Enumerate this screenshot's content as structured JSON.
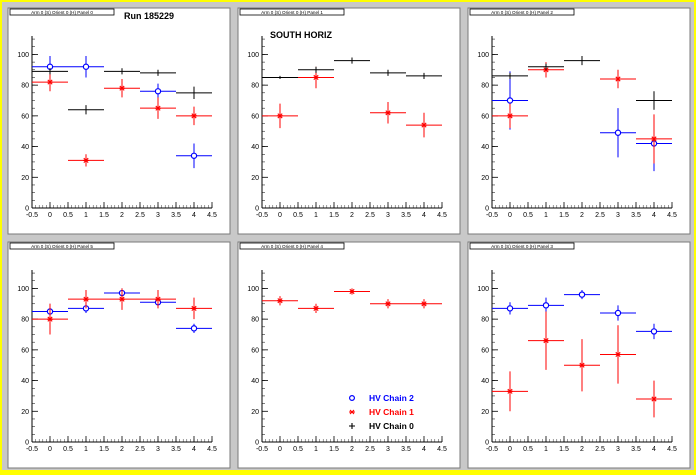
{
  "figure": {
    "run_label": "Run 185229",
    "region_label": "SOUTH HORIZ"
  },
  "legend": {
    "entries": [
      {
        "label": "HV Chain 2",
        "color": "#0000ff",
        "marker": "open-circle"
      },
      {
        "label": "HV Chain 1",
        "color": "#ff0000",
        "marker": "star"
      },
      {
        "label": "HV Chain 0",
        "color": "#000000",
        "marker": "cross"
      }
    ]
  },
  "colors": {
    "chain2": "#0000ff",
    "chain1": "#ff0000",
    "chain0": "#000000",
    "frame": "#c8c8c8",
    "border": "#ffff00"
  },
  "chart_data": [
    {
      "type": "scatter",
      "title": "Arm 0 (S) Orient 0 (H) Panel 0",
      "x_ticks": [
        "-0.5",
        "0",
        "0.5",
        "1",
        "1.5",
        "2",
        "2.5",
        "3",
        "3.5",
        "4",
        "4.5"
      ],
      "y_ticks": [
        "0",
        "20",
        "40",
        "60",
        "80",
        "100"
      ],
      "xlim": [
        -0.5,
        4.5
      ],
      "ylim": [
        0,
        112
      ],
      "series": [
        {
          "name": "HV Chain 2",
          "color": "#0000ff",
          "marker": "open-circle",
          "points": [
            {
              "x": 0,
              "y": 92,
              "ey": 7
            },
            {
              "x": 1,
              "y": 92,
              "ey": 7
            },
            {
              "x": 3,
              "y": 76,
              "ey": 5
            },
            {
              "x": 4,
              "y": 34,
              "ey": 8
            }
          ]
        },
        {
          "name": "HV Chain 1",
          "color": "#ff0000",
          "marker": "star",
          "points": [
            {
              "x": 0,
              "y": 82,
              "ey": 6
            },
            {
              "x": 1,
              "y": 31,
              "ey": 4
            },
            {
              "x": 2,
              "y": 78,
              "ey": 6
            },
            {
              "x": 3,
              "y": 65,
              "ey": 7
            },
            {
              "x": 4,
              "y": 60,
              "ey": 6
            }
          ]
        },
        {
          "name": "HV Chain 0",
          "color": "#000000",
          "marker": "cross",
          "points": [
            {
              "x": 0,
              "y": 89,
              "ey": 2
            },
            {
              "x": 1,
              "y": 64,
              "ey": 3
            },
            {
              "x": 2,
              "y": 89,
              "ey": 2
            },
            {
              "x": 3,
              "y": 88,
              "ey": 2
            },
            {
              "x": 4,
              "y": 75,
              "ey": 4
            }
          ]
        }
      ]
    },
    {
      "type": "scatter",
      "title": "Arm 0 (S) Orient 0 (H) Panel 1",
      "x_ticks": [
        "-0.5",
        "0",
        "0.5",
        "1",
        "1.5",
        "2",
        "2.5",
        "3",
        "3.5",
        "4",
        "4.5"
      ],
      "y_ticks": [
        "0",
        "20",
        "40",
        "60",
        "80",
        "100"
      ],
      "xlim": [
        -0.5,
        4.5
      ],
      "ylim": [
        0,
        112
      ],
      "series": [
        {
          "name": "HV Chain 2",
          "color": "#0000ff",
          "marker": "open-circle",
          "points": []
        },
        {
          "name": "HV Chain 1",
          "color": "#ff0000",
          "marker": "star",
          "points": [
            {
              "x": 0,
              "y": 60,
              "ey": 8
            },
            {
              "x": 1,
              "y": 85,
              "ey": 7
            },
            {
              "x": 3,
              "y": 62,
              "ey": 7
            },
            {
              "x": 4,
              "y": 54,
              "ey": 8
            }
          ]
        },
        {
          "name": "HV Chain 0",
          "color": "#000000",
          "marker": "cross",
          "points": [
            {
              "x": 0,
              "y": 85,
              "ey": 1
            },
            {
              "x": 1,
              "y": 90,
              "ey": 2
            },
            {
              "x": 2,
              "y": 96,
              "ey": 2
            },
            {
              "x": 3,
              "y": 88,
              "ey": 2
            },
            {
              "x": 4,
              "y": 86,
              "ey": 2
            }
          ]
        }
      ]
    },
    {
      "type": "scatter",
      "title": "Arm 0 (S) Orient 0 (H) Panel 2",
      "x_ticks": [
        "-0.5",
        "0",
        "0.5",
        "1",
        "1.5",
        "2",
        "2.5",
        "3",
        "3.5",
        "4",
        "4.5"
      ],
      "y_ticks": [
        "0",
        "20",
        "40",
        "60",
        "80",
        "100"
      ],
      "xlim": [
        -0.5,
        4.5
      ],
      "ylim": [
        0,
        112
      ],
      "series": [
        {
          "name": "HV Chain 2",
          "color": "#0000ff",
          "marker": "open-circle",
          "points": [
            {
              "x": 0,
              "y": 70,
              "ey": 19
            },
            {
              "x": 3,
              "y": 49,
              "ey": 16
            },
            {
              "x": 4,
              "y": 42,
              "ey": 18
            }
          ]
        },
        {
          "name": "HV Chain 1",
          "color": "#ff0000",
          "marker": "star",
          "points": [
            {
              "x": 0,
              "y": 60,
              "ey": 8
            },
            {
              "x": 1,
              "y": 90,
              "ey": 5
            },
            {
              "x": 3,
              "y": 84,
              "ey": 6
            },
            {
              "x": 4,
              "y": 45,
              "ey": 16
            }
          ]
        },
        {
          "name": "HV Chain 0",
          "color": "#000000",
          "marker": "cross",
          "points": [
            {
              "x": 0,
              "y": 86,
              "ey": 2
            },
            {
              "x": 1,
              "y": 92,
              "ey": 2
            },
            {
              "x": 2,
              "y": 96,
              "ey": 3
            },
            {
              "x": 4,
              "y": 70,
              "ey": 6
            }
          ]
        }
      ]
    },
    {
      "type": "scatter",
      "title": "Arm 0 (S) Orient 0 (H) Panel 5",
      "x_ticks": [
        "-0.5",
        "0",
        "0.5",
        "1",
        "1.5",
        "2",
        "2.5",
        "3",
        "3.5",
        "4",
        "4.5"
      ],
      "y_ticks": [
        "0",
        "20",
        "40",
        "60",
        "80",
        "100"
      ],
      "xlim": [
        -0.5,
        4.5
      ],
      "ylim": [
        0,
        112
      ],
      "series": [
        {
          "name": "HV Chain 2",
          "color": "#0000ff",
          "marker": "open-circle",
          "points": [
            {
              "x": 0,
              "y": 85,
              "ey": 5
            },
            {
              "x": 1,
              "y": 87,
              "ey": 3
            },
            {
              "x": 2,
              "y": 97,
              "ey": 3
            },
            {
              "x": 3,
              "y": 91,
              "ey": 3
            },
            {
              "x": 4,
              "y": 74,
              "ey": 3
            }
          ]
        },
        {
          "name": "HV Chain 1",
          "color": "#ff0000",
          "marker": "star",
          "points": [
            {
              "x": 0,
              "y": 80,
              "ey": 10
            },
            {
              "x": 1,
              "y": 93,
              "ey": 6
            },
            {
              "x": 2,
              "y": 93,
              "ey": 7
            },
            {
              "x": 3,
              "y": 93,
              "ey": 6
            },
            {
              "x": 4,
              "y": 87,
              "ey": 7
            }
          ]
        },
        {
          "name": "HV Chain 0",
          "color": "#000000",
          "marker": "cross",
          "points": []
        }
      ]
    },
    {
      "type": "scatter",
      "title": "Arm 0 (S) Orient 0 (H) Panel 4",
      "x_ticks": [
        "-0.5",
        "0",
        "0.5",
        "1",
        "1.5",
        "2",
        "2.5",
        "3",
        "3.5",
        "4",
        "4.5"
      ],
      "y_ticks": [
        "0",
        "20",
        "40",
        "60",
        "80",
        "100"
      ],
      "xlim": [
        -0.5,
        4.5
      ],
      "ylim": [
        0,
        112
      ],
      "series": [
        {
          "name": "HV Chain 2",
          "color": "#0000ff",
          "marker": "open-circle",
          "points": []
        },
        {
          "name": "HV Chain 1",
          "color": "#ff0000",
          "marker": "star",
          "points": [
            {
              "x": 0,
              "y": 92,
              "ey": 3
            },
            {
              "x": 1,
              "y": 87,
              "ey": 3
            },
            {
              "x": 2,
              "y": 98,
              "ey": 2
            },
            {
              "x": 3,
              "y": 90,
              "ey": 3
            },
            {
              "x": 4,
              "y": 90,
              "ey": 3
            }
          ]
        },
        {
          "name": "HV Chain 0",
          "color": "#000000",
          "marker": "cross",
          "points": []
        }
      ]
    },
    {
      "type": "scatter",
      "title": "Arm 0 (S) Orient 0 (H) Panel 3",
      "x_ticks": [
        "-0.5",
        "0",
        "0.5",
        "1",
        "1.5",
        "2",
        "2.5",
        "3",
        "3.5",
        "4",
        "4.5"
      ],
      "y_ticks": [
        "0",
        "20",
        "40",
        "60",
        "80",
        "100"
      ],
      "xlim": [
        -0.5,
        4.5
      ],
      "ylim": [
        0,
        112
      ],
      "series": [
        {
          "name": "HV Chain 2",
          "color": "#0000ff",
          "marker": "open-circle",
          "points": [
            {
              "x": 0,
              "y": 87,
              "ey": 4
            },
            {
              "x": 1,
              "y": 89,
              "ey": 5
            },
            {
              "x": 2,
              "y": 96,
              "ey": 3
            },
            {
              "x": 3,
              "y": 84,
              "ey": 5
            },
            {
              "x": 4,
              "y": 72,
              "ey": 5
            }
          ]
        },
        {
          "name": "HV Chain 1",
          "color": "#ff0000",
          "marker": "star",
          "points": [
            {
              "x": 0,
              "y": 33,
              "ey": 13
            },
            {
              "x": 1,
              "y": 66,
              "ey": 19
            },
            {
              "x": 2,
              "y": 50,
              "ey": 17
            },
            {
              "x": 3,
              "y": 57,
              "ey": 19
            },
            {
              "x": 4,
              "y": 28,
              "ey": 12
            }
          ]
        },
        {
          "name": "HV Chain 0",
          "color": "#000000",
          "marker": "cross",
          "points": []
        }
      ]
    }
  ]
}
